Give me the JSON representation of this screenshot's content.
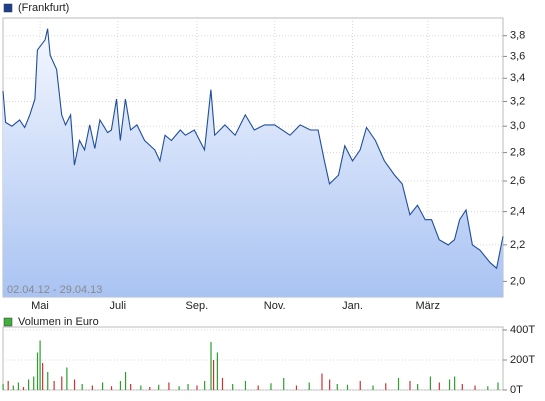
{
  "chart_data": [
    {
      "type": "line",
      "legend": "(Frankfurt)",
      "range_label": "02.04.12 - 29.04.13",
      "color": "#1f4e9c",
      "legend_color": "#1f3f8f",
      "log_scale": true,
      "grid": true,
      "x": [
        "2012-04-02",
        "2012-04-04",
        "2012-04-09",
        "2012-04-15",
        "2012-04-19",
        "2012-04-23",
        "2012-04-27",
        "2012-04-29",
        "2012-05-05",
        "2012-05-07",
        "2012-05-09",
        "2012-05-14",
        "2012-05-18",
        "2012-05-21",
        "2012-05-25",
        "2012-05-28",
        "2012-06-01",
        "2012-06-05",
        "2012-06-09",
        "2012-06-13",
        "2012-06-17",
        "2012-06-23",
        "2012-06-26",
        "2012-06-30",
        "2012-07-03",
        "2012-07-07",
        "2012-07-11",
        "2012-07-16",
        "2012-07-22",
        "2012-07-30",
        "2012-08-03",
        "2012-08-07",
        "2012-08-12",
        "2012-08-19",
        "2012-08-23",
        "2012-08-30",
        "2012-09-07",
        "2012-09-12",
        "2012-09-15",
        "2012-09-23",
        "2012-10-01",
        "2012-10-09",
        "2012-10-16",
        "2012-10-24",
        "2012-11-01",
        "2012-11-13",
        "2012-11-21",
        "2012-11-29",
        "2012-12-05",
        "2012-12-10",
        "2012-12-14",
        "2012-12-21",
        "2012-12-26",
        "2013-01-01",
        "2013-01-07",
        "2013-01-12",
        "2013-01-19",
        "2013-01-26",
        "2013-02-03",
        "2013-02-09",
        "2013-02-15",
        "2013-02-21",
        "2013-02-27",
        "2013-03-04",
        "2013-03-10",
        "2013-03-17",
        "2013-03-22",
        "2013-03-26",
        "2013-03-31",
        "2013-04-05",
        "2013-04-11",
        "2013-04-19",
        "2013-04-24",
        "2013-04-29"
      ],
      "values": [
        3.29,
        3.03,
        3.0,
        3.05,
        2.99,
        3.09,
        3.22,
        3.66,
        3.76,
        3.87,
        3.61,
        3.48,
        3.09,
        3.01,
        3.09,
        2.71,
        2.89,
        2.82,
        3.01,
        2.83,
        3.05,
        2.95,
        2.97,
        3.22,
        2.89,
        3.22,
        2.97,
        3.01,
        2.89,
        2.82,
        2.74,
        2.93,
        2.89,
        2.97,
        2.93,
        2.97,
        2.82,
        3.3,
        2.93,
        3.01,
        2.93,
        3.09,
        2.97,
        3.01,
        3.01,
        2.93,
        3.01,
        2.97,
        2.97,
        2.74,
        2.58,
        2.64,
        2.85,
        2.74,
        2.82,
        2.99,
        2.89,
        2.74,
        2.64,
        2.58,
        2.38,
        2.44,
        2.35,
        2.35,
        2.23,
        2.2,
        2.23,
        2.35,
        2.41,
        2.2,
        2.17,
        2.1,
        2.07,
        2.25
      ],
      "xlim": [
        "2012-04-02",
        "2013-04-29"
      ],
      "xticks": [
        {
          "value": "2012-05-01",
          "label": "Mai"
        },
        {
          "value": "2012-07-01",
          "label": "Juli"
        },
        {
          "value": "2012-09-01",
          "label": "Sep."
        },
        {
          "value": "2012-11-01",
          "label": "Nov."
        },
        {
          "value": "2013-01-01",
          "label": "Jan."
        },
        {
          "value": "2013-03-01",
          "label": "März"
        }
      ],
      "ylim": [
        1.92,
        3.98
      ],
      "yticks": [
        {
          "value": 2.0,
          "label": "2,0"
        },
        {
          "value": 2.2,
          "label": "2,2"
        },
        {
          "value": 2.4,
          "label": "2,4"
        },
        {
          "value": 2.6,
          "label": "2,6"
        },
        {
          "value": 2.8,
          "label": "2,8"
        },
        {
          "value": 3.0,
          "label": "3,0"
        },
        {
          "value": 3.2,
          "label": "3,2"
        },
        {
          "value": 3.4,
          "label": "3,4"
        },
        {
          "value": 3.6,
          "label": "3,6"
        },
        {
          "value": 3.8,
          "label": "3,8"
        }
      ]
    },
    {
      "type": "bar",
      "legend": "Volumen in Euro",
      "legend_color": "#3fae3f",
      "grid": true,
      "x": [
        "2012-04-02",
        "2012-04-06",
        "2012-04-10",
        "2012-04-14",
        "2012-04-18",
        "2012-04-22",
        "2012-04-26",
        "2012-04-29",
        "2012-05-01",
        "2012-05-03",
        "2012-05-07",
        "2012-05-12",
        "2012-05-18",
        "2012-05-22",
        "2012-05-28",
        "2012-06-03",
        "2012-06-11",
        "2012-06-19",
        "2012-06-26",
        "2012-07-03",
        "2012-07-07",
        "2012-07-11",
        "2012-07-19",
        "2012-07-26",
        "2012-08-02",
        "2012-08-10",
        "2012-08-18",
        "2012-08-25",
        "2012-09-01",
        "2012-09-07",
        "2012-09-12",
        "2012-09-14",
        "2012-09-17",
        "2012-09-21",
        "2012-09-29",
        "2012-10-09",
        "2012-10-19",
        "2012-10-29",
        "2012-11-08",
        "2012-11-18",
        "2012-11-28",
        "2012-12-08",
        "2012-12-14",
        "2012-12-20",
        "2012-12-28",
        "2013-01-07",
        "2013-01-17",
        "2013-01-27",
        "2013-02-06",
        "2013-02-15",
        "2013-02-21",
        "2013-03-03",
        "2013-03-10",
        "2013-03-18",
        "2013-03-22",
        "2013-03-28",
        "2013-04-07",
        "2013-04-17",
        "2013-04-25"
      ],
      "values": [
        40,
        60,
        30,
        50,
        20,
        70,
        90,
        250,
        330,
        180,
        120,
        60,
        90,
        150,
        70,
        40,
        30,
        50,
        25,
        60,
        120,
        40,
        30,
        20,
        35,
        50,
        25,
        40,
        30,
        60,
        320,
        200,
        250,
        80,
        40,
        60,
        30,
        45,
        80,
        30,
        50,
        110,
        70,
        40,
        35,
        60,
        30,
        45,
        80,
        60,
        40,
        90,
        50,
        70,
        90,
        40,
        30,
        25,
        50
      ],
      "colors": [
        "#2e9e2e",
        "#cc3333",
        "#2e9e2e",
        "#2e9e2e",
        "#cc3333",
        "#2e9e2e",
        "#2e9e2e",
        "#2e9e2e",
        "#2e9e2e",
        "#cc3333",
        "#2e9e2e",
        "#cc3333",
        "#cc3333",
        "#2e9e2e",
        "#cc3333",
        "#2e9e2e",
        "#cc3333",
        "#2e9e2e",
        "#cc3333",
        "#2e9e2e",
        "#2e9e2e",
        "#cc3333",
        "#2e9e2e",
        "#cc3333",
        "#2e9e2e",
        "#cc3333",
        "#2e9e2e",
        "#2e9e2e",
        "#cc3333",
        "#2e9e2e",
        "#2e9e2e",
        "#cc3333",
        "#2e9e2e",
        "#cc3333",
        "#2e9e2e",
        "#2e9e2e",
        "#cc3333",
        "#2e9e2e",
        "#2e9e2e",
        "#cc3333",
        "#2e9e2e",
        "#cc3333",
        "#cc3333",
        "#2e9e2e",
        "#2e9e2e",
        "#cc3333",
        "#2e9e2e",
        "#cc3333",
        "#2e9e2e",
        "#cc3333",
        "#2e9e2e",
        "#2e9e2e",
        "#cc3333",
        "#2e9e2e",
        "#2e9e2e",
        "#cc3333",
        "#cc3333",
        "#2e9e2e",
        "#2e9e2e"
      ],
      "xlim": [
        "2012-04-02",
        "2013-04-29"
      ],
      "ylim": [
        0,
        420
      ],
      "yticks": [
        {
          "value": 0,
          "label": "0T"
        },
        {
          "value": 200,
          "label": "200T"
        },
        {
          "value": 400,
          "label": "400T"
        }
      ]
    }
  ]
}
